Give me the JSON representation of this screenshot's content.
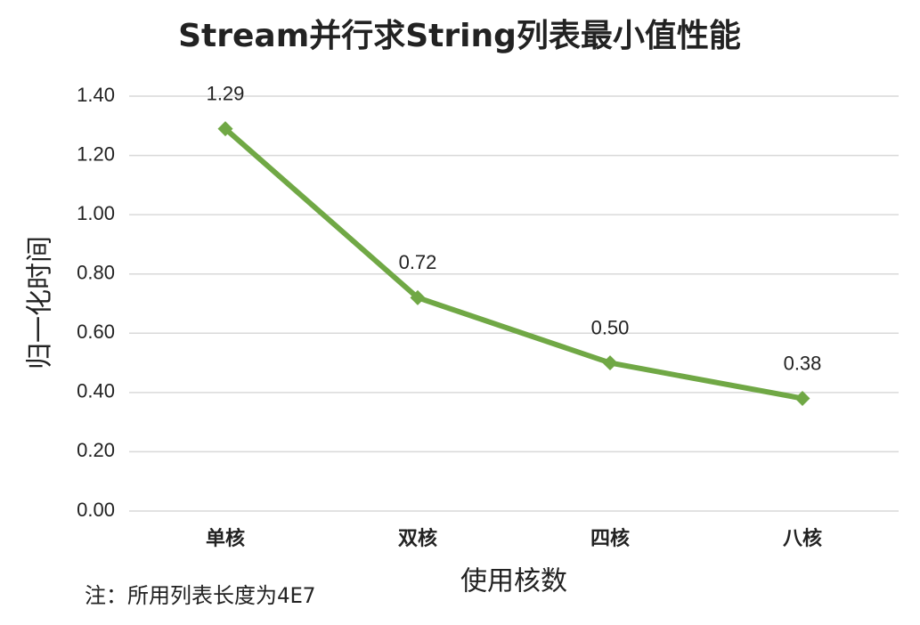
{
  "chart_data": {
    "type": "line",
    "title": "Stream并行求String列表最小值性能",
    "categories": [
      "单核",
      "双核",
      "四核",
      "八核"
    ],
    "values": [
      1.29,
      0.72,
      0.5,
      0.38
    ],
    "value_labels": [
      "1.29",
      "0.72",
      "0.50",
      "0.38"
    ],
    "color": "#70a845",
    "ylim": [
      0,
      1.4
    ],
    "yticks": [
      {
        "value": 0,
        "label": "0.00"
      },
      {
        "value": 0.2,
        "label": "0.20"
      },
      {
        "value": 0.4,
        "label": "0.40"
      },
      {
        "value": 0.6,
        "label": "0.60"
      },
      {
        "value": 0.8,
        "label": "0.80"
      },
      {
        "value": 1,
        "label": "1.00"
      },
      {
        "value": 1.2,
        "label": "1.20"
      },
      {
        "value": 1.4,
        "label": "1.40"
      }
    ],
    "grid": true,
    "y_label": "归一化时间",
    "x_label": "使用核数",
    "annotation": "注：所用列表长度为4E7"
  }
}
